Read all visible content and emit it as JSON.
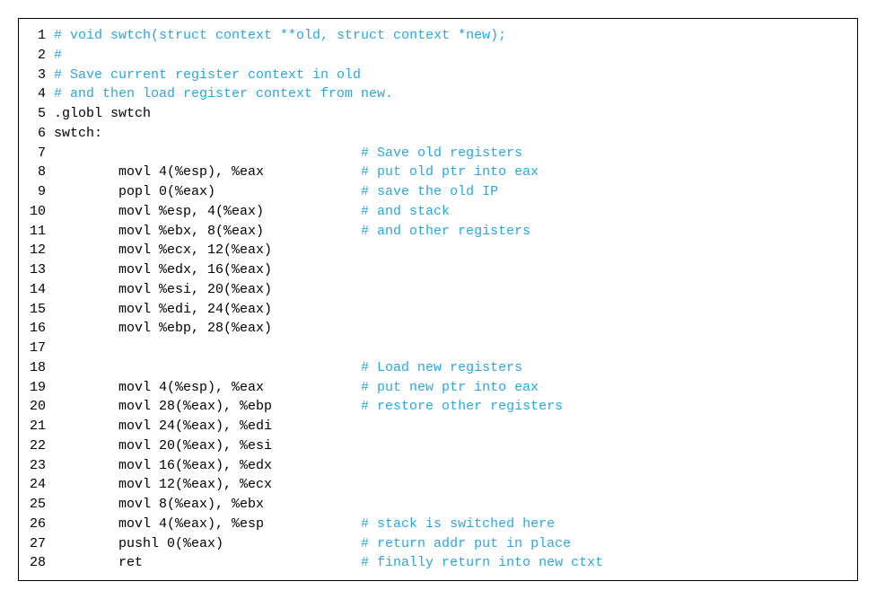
{
  "colors": {
    "comment": "#2aa7e0",
    "plain": "#000000",
    "border": "#000000",
    "background": "#ffffff"
  },
  "font": {
    "family": "Courier New",
    "size_pt": 15,
    "line_height": 1.45
  },
  "layout": {
    "line_number_width_ch": 2,
    "code_column_width_ch": 30,
    "indent": "        "
  },
  "lines": [
    {
      "n": 1,
      "full_comment": "# void swtch(struct context **old, struct context *new);"
    },
    {
      "n": 2,
      "full_comment": "#"
    },
    {
      "n": 3,
      "full_comment": "# Save current register context in old"
    },
    {
      "n": 4,
      "full_comment": "# and then load register context from new."
    },
    {
      "n": 5,
      "plain": ".globl swtch"
    },
    {
      "n": 6,
      "plain": "swtch:"
    },
    {
      "n": 7,
      "indent": true,
      "code": "",
      "comment": "# Save old registers"
    },
    {
      "n": 8,
      "indent": true,
      "code": "movl 4(%esp), %eax",
      "comment": "# put old ptr into eax"
    },
    {
      "n": 9,
      "indent": true,
      "code": "popl 0(%eax)",
      "comment": "# save the old IP"
    },
    {
      "n": 10,
      "indent": true,
      "code": "movl %esp, 4(%eax)",
      "comment": "# and stack"
    },
    {
      "n": 11,
      "indent": true,
      "code": "movl %ebx, 8(%eax)",
      "comment": "# and other registers"
    },
    {
      "n": 12,
      "indent": true,
      "code": "movl %ecx, 12(%eax)"
    },
    {
      "n": 13,
      "indent": true,
      "code": "movl %edx, 16(%eax)"
    },
    {
      "n": 14,
      "indent": true,
      "code": "movl %esi, 20(%eax)"
    },
    {
      "n": 15,
      "indent": true,
      "code": "movl %edi, 24(%eax)"
    },
    {
      "n": 16,
      "indent": true,
      "code": "movl %ebp, 28(%eax)"
    },
    {
      "n": 17,
      "blank": true
    },
    {
      "n": 18,
      "indent": true,
      "code": "",
      "comment": "# Load new registers"
    },
    {
      "n": 19,
      "indent": true,
      "code": "movl 4(%esp), %eax",
      "comment": "# put new ptr into eax"
    },
    {
      "n": 20,
      "indent": true,
      "code": "movl 28(%eax), %ebp",
      "comment": "# restore other registers"
    },
    {
      "n": 21,
      "indent": true,
      "code": "movl 24(%eax), %edi"
    },
    {
      "n": 22,
      "indent": true,
      "code": "movl 20(%eax), %esi"
    },
    {
      "n": 23,
      "indent": true,
      "code": "movl 16(%eax), %edx"
    },
    {
      "n": 24,
      "indent": true,
      "code": "movl 12(%eax), %ecx"
    },
    {
      "n": 25,
      "indent": true,
      "code": "movl 8(%eax), %ebx"
    },
    {
      "n": 26,
      "indent": true,
      "code": "movl 4(%eax), %esp",
      "comment": "# stack is switched here"
    },
    {
      "n": 27,
      "indent": true,
      "code": "pushl 0(%eax)",
      "comment": "# return addr put in place"
    },
    {
      "n": 28,
      "indent": true,
      "code": "ret",
      "comment": "# finally return into new ctxt"
    }
  ]
}
